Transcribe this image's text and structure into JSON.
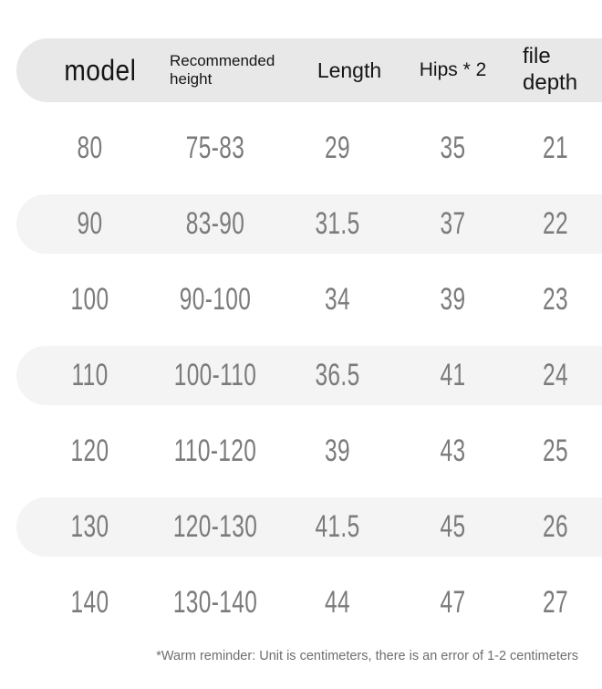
{
  "colors": {
    "header_bg": "#e8e8e8",
    "stripe_bg": "#f4f4f4",
    "header_text": "#151515",
    "cell_text": "#7b7b7b",
    "note_text": "#6e6e6e"
  },
  "table": {
    "columns": [
      {
        "label": "model"
      },
      {
        "label": "Recommended height"
      },
      {
        "label": "Length"
      },
      {
        "label": "Hips * 2"
      },
      {
        "label": "file depth"
      }
    ],
    "rows": [
      [
        "80",
        "75-83",
        "29",
        "35",
        "21"
      ],
      [
        "90",
        "83-90",
        "31.5",
        "37",
        "22"
      ],
      [
        "100",
        "90-100",
        "34",
        "39",
        "23"
      ],
      [
        "110",
        "100-110",
        "36.5",
        "41",
        "24"
      ],
      [
        "120",
        "110-120",
        "39",
        "43",
        "25"
      ],
      [
        "130",
        "120-130",
        "41.5",
        "45",
        "26"
      ],
      [
        "140",
        "130-140",
        "44",
        "47",
        "27"
      ]
    ]
  },
  "note": "*Warm reminder: Unit is centimeters, there is an error of 1-2 centimeters",
  "chart_data": {
    "type": "table",
    "columns": [
      "model",
      "Recommended height",
      "Length",
      "Hips * 2",
      "file depth"
    ],
    "rows": [
      [
        80,
        "75-83",
        29,
        35,
        21
      ],
      [
        90,
        "83-90",
        31.5,
        37,
        22
      ],
      [
        100,
        "90-100",
        34,
        39,
        23
      ],
      [
        110,
        "100-110",
        36.5,
        41,
        24
      ],
      [
        120,
        "110-120",
        39,
        43,
        25
      ],
      [
        130,
        "120-130",
        41.5,
        45,
        26
      ],
      [
        140,
        "130-140",
        44,
        47,
        27
      ]
    ],
    "note": "*Warm reminder: Unit is centimeters, there is an error of 1-2 centimeters",
    "layout_hints": {
      "striped_rows": [
        1,
        3,
        5
      ],
      "header_band": true,
      "unit": "centimeters"
    }
  }
}
